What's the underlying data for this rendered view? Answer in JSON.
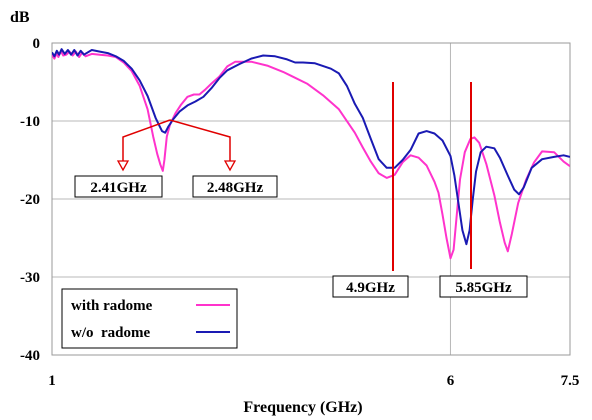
{
  "chart_data": {
    "type": "line",
    "title": "",
    "xlabel": "Frequency (GHz)",
    "ylabel": "dB",
    "xlim": [
      1,
      7.5
    ],
    "ylim": [
      -40,
      0
    ],
    "x_ticks": [
      1,
      6,
      7.5
    ],
    "x_tick_labels": [
      "1",
      "6",
      "7.5"
    ],
    "y_ticks": [
      0,
      -10,
      -20,
      -30,
      -40
    ],
    "y_tick_labels": [
      "0",
      "-10",
      "-20",
      "-30",
      "-40"
    ],
    "grid": true,
    "legend_position": "bottom-left",
    "series": [
      {
        "name": "with radome",
        "color": "#ff33cc",
        "points": [
          [
            1.0,
            -1.5
          ],
          [
            1.03,
            -2.0
          ],
          [
            1.06,
            -1.3
          ],
          [
            1.08,
            -1.8
          ],
          [
            1.11,
            -1.0
          ],
          [
            1.14,
            -1.6
          ],
          [
            1.18,
            -1.5
          ],
          [
            1.22,
            -1.1
          ],
          [
            1.26,
            -1.6
          ],
          [
            1.3,
            -1.1
          ],
          [
            1.34,
            -1.8
          ],
          [
            1.38,
            -1.2
          ],
          [
            1.42,
            -1.7
          ],
          [
            1.5,
            -1.4
          ],
          [
            1.6,
            -1.5
          ],
          [
            1.7,
            -1.6
          ],
          [
            1.8,
            -1.8
          ],
          [
            1.9,
            -2.5
          ],
          [
            2.0,
            -3.6
          ],
          [
            2.1,
            -5.5
          ],
          [
            2.2,
            -8.5
          ],
          [
            2.27,
            -12.0
          ],
          [
            2.32,
            -14.2
          ],
          [
            2.36,
            -15.6
          ],
          [
            2.39,
            -16.4
          ],
          [
            2.41,
            -15.0
          ],
          [
            2.44,
            -12.0
          ],
          [
            2.48,
            -10.5
          ],
          [
            2.55,
            -9.0
          ],
          [
            2.62,
            -7.9
          ],
          [
            2.7,
            -6.9
          ],
          [
            2.78,
            -6.6
          ],
          [
            2.85,
            -6.6
          ],
          [
            2.92,
            -6.0
          ],
          [
            3.0,
            -5.2
          ],
          [
            3.1,
            -4.3
          ],
          [
            3.2,
            -3.0
          ],
          [
            3.3,
            -2.4
          ],
          [
            3.5,
            -2.4
          ],
          [
            3.7,
            -2.9
          ],
          [
            3.9,
            -3.7
          ],
          [
            4.0,
            -4.2
          ],
          [
            4.2,
            -5.2
          ],
          [
            4.4,
            -6.7
          ],
          [
            4.6,
            -8.5
          ],
          [
            4.8,
            -11.5
          ],
          [
            4.9,
            -13.4
          ],
          [
            5.0,
            -15.2
          ],
          [
            5.1,
            -16.7
          ],
          [
            5.2,
            -17.3
          ],
          [
            5.3,
            -16.9
          ],
          [
            5.4,
            -15.3
          ],
          [
            5.5,
            -14.4
          ],
          [
            5.6,
            -14.7
          ],
          [
            5.7,
            -15.7
          ],
          [
            5.8,
            -17.8
          ],
          [
            5.85,
            -19.2
          ],
          [
            5.9,
            -22.0
          ],
          [
            5.95,
            -25.0
          ],
          [
            6.0,
            -27.6
          ],
          [
            6.04,
            -26.5
          ],
          [
            6.08,
            -22.0
          ],
          [
            6.12,
            -17.5
          ],
          [
            6.18,
            -14.0
          ],
          [
            6.25,
            -12.3
          ],
          [
            6.3,
            -12.1
          ],
          [
            6.36,
            -12.8
          ],
          [
            6.45,
            -15.5
          ],
          [
            6.55,
            -19.5
          ],
          [
            6.62,
            -23.0
          ],
          [
            6.68,
            -25.6
          ],
          [
            6.72,
            -26.7
          ],
          [
            6.77,
            -24.5
          ],
          [
            6.85,
            -20.5
          ],
          [
            6.95,
            -17.5
          ],
          [
            7.05,
            -15.3
          ],
          [
            7.15,
            -13.9
          ],
          [
            7.3,
            -14.0
          ],
          [
            7.42,
            -15.2
          ],
          [
            7.5,
            -15.8
          ]
        ]
      },
      {
        "name": "w/o  radome",
        "color": "#1a1ab3",
        "points": [
          [
            1.0,
            -1.2
          ],
          [
            1.03,
            -1.7
          ],
          [
            1.06,
            -1.0
          ],
          [
            1.09,
            -1.5
          ],
          [
            1.12,
            -0.8
          ],
          [
            1.16,
            -1.4
          ],
          [
            1.2,
            -0.9
          ],
          [
            1.24,
            -1.5
          ],
          [
            1.28,
            -0.9
          ],
          [
            1.32,
            -1.6
          ],
          [
            1.36,
            -1.0
          ],
          [
            1.4,
            -1.5
          ],
          [
            1.5,
            -0.9
          ],
          [
            1.6,
            -1.1
          ],
          [
            1.7,
            -1.3
          ],
          [
            1.8,
            -1.7
          ],
          [
            1.9,
            -2.3
          ],
          [
            2.0,
            -3.3
          ],
          [
            2.1,
            -4.8
          ],
          [
            2.2,
            -6.8
          ],
          [
            2.3,
            -9.6
          ],
          [
            2.38,
            -11.3
          ],
          [
            2.42,
            -11.5
          ],
          [
            2.46,
            -10.7
          ],
          [
            2.52,
            -9.8
          ],
          [
            2.6,
            -8.8
          ],
          [
            2.7,
            -8.0
          ],
          [
            2.8,
            -7.5
          ],
          [
            2.9,
            -6.9
          ],
          [
            3.0,
            -5.8
          ],
          [
            3.1,
            -4.5
          ],
          [
            3.2,
            -3.5
          ],
          [
            3.35,
            -2.7
          ],
          [
            3.5,
            -2.0
          ],
          [
            3.65,
            -1.6
          ],
          [
            3.8,
            -1.7
          ],
          [
            3.95,
            -2.1
          ],
          [
            4.05,
            -2.5
          ],
          [
            4.15,
            -2.5
          ],
          [
            4.3,
            -2.6
          ],
          [
            4.5,
            -3.3
          ],
          [
            4.6,
            -3.9
          ],
          [
            4.7,
            -5.5
          ],
          [
            4.8,
            -7.8
          ],
          [
            4.9,
            -9.6
          ],
          [
            5.0,
            -12.3
          ],
          [
            5.1,
            -14.9
          ],
          [
            5.2,
            -16.0
          ],
          [
            5.3,
            -16.0
          ],
          [
            5.4,
            -15.0
          ],
          [
            5.5,
            -13.7
          ],
          [
            5.6,
            -11.6
          ],
          [
            5.7,
            -11.3
          ],
          [
            5.8,
            -11.6
          ],
          [
            5.9,
            -12.5
          ],
          [
            6.0,
            -14.5
          ],
          [
            6.05,
            -17.0
          ],
          [
            6.1,
            -20.5
          ],
          [
            6.15,
            -24.0
          ],
          [
            6.2,
            -25.8
          ],
          [
            6.24,
            -24.0
          ],
          [
            6.28,
            -20.0
          ],
          [
            6.32,
            -16.5
          ],
          [
            6.38,
            -14.0
          ],
          [
            6.45,
            -13.3
          ],
          [
            6.55,
            -13.5
          ],
          [
            6.62,
            -14.7
          ],
          [
            6.72,
            -17.0
          ],
          [
            6.8,
            -18.8
          ],
          [
            6.86,
            -19.4
          ],
          [
            6.92,
            -18.5
          ],
          [
            7.02,
            -16.0
          ],
          [
            7.15,
            -14.9
          ],
          [
            7.3,
            -14.6
          ],
          [
            7.42,
            -14.4
          ],
          [
            7.5,
            -14.6
          ]
        ]
      }
    ],
    "annotations": {
      "markers": [
        {
          "label": "2.41GHz"
        },
        {
          "label": "2.48GHz"
        },
        {
          "label": "4.9GHz"
        },
        {
          "label": "5.85GHz"
        }
      ]
    }
  }
}
